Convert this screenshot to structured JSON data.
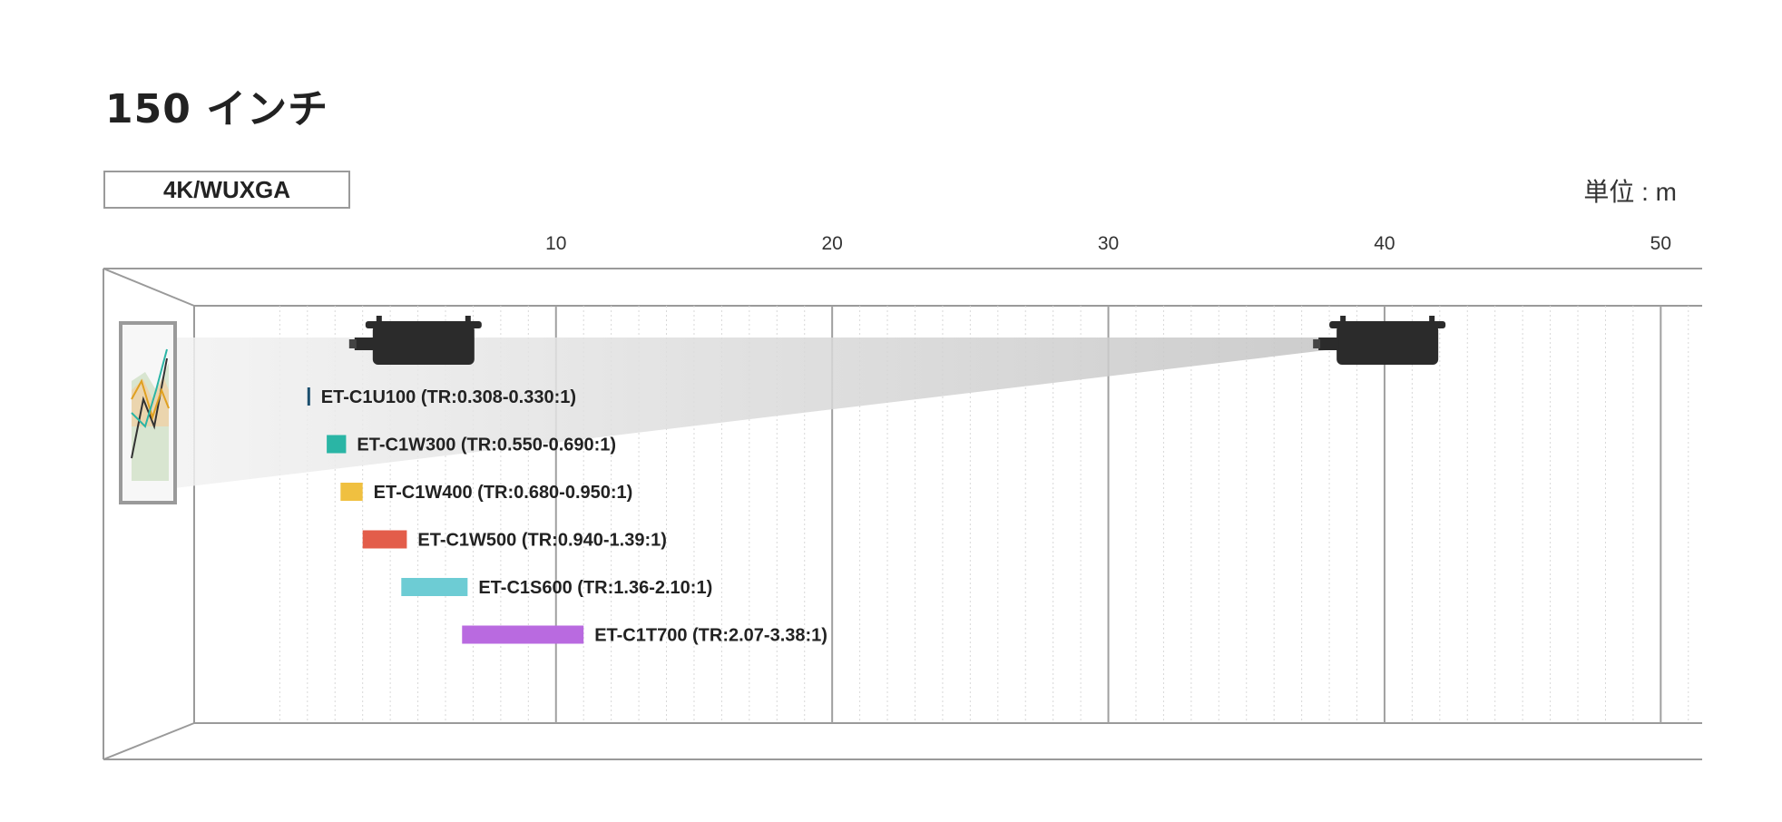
{
  "title": "150 インチ",
  "resolution": "4K/WUXGA",
  "unit": "単位 : m",
  "chart_data": {
    "type": "bar",
    "title": "150 インチ",
    "x_ticks": [
      10,
      20,
      30,
      40,
      50
    ],
    "xlim": [
      -3.1,
      51.5
    ],
    "grid": true,
    "lenses": [
      {
        "label": "ET-C1U100 (TR:0.308-0.330:1)",
        "range": [
          1.0,
          1.05
        ],
        "color": "#1c4f6e"
      },
      {
        "label": "ET-C1W300 (TR:0.550-0.690:1)",
        "range": [
          1.7,
          2.4
        ],
        "color": "#2ab5a5"
      },
      {
        "label": "ET-C1W400 (TR:0.680-0.950:1)",
        "range": [
          2.2,
          3.0
        ],
        "color": "#f0c040"
      },
      {
        "label": "ET-C1W500 (TR:0.940-1.39:1)",
        "range": [
          3.0,
          4.6
        ],
        "color": "#e35d4a"
      },
      {
        "label": "ET-C1S600 (TR:1.36-2.10:1)",
        "range": [
          4.4,
          6.8
        ],
        "color": "#6dccd4"
      },
      {
        "label": "ET-C1T700 (TR:2.07-3.38:1)",
        "range": [
          6.6,
          11.0
        ],
        "color": "#b96ae0"
      }
    ],
    "projector_positions": [
      3.3,
      38.2
    ]
  }
}
